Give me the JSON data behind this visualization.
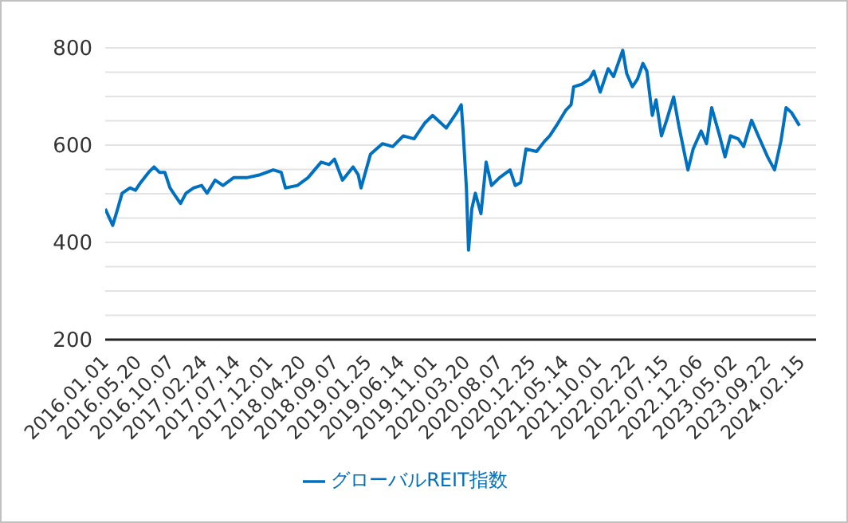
{
  "chart_data": {
    "type": "line",
    "x": [
      "2016-01-01",
      "2016-01-16",
      "2016-02-02",
      "2016-02-20",
      "2016-03-13",
      "2016-04-16",
      "2016-05-09",
      "2016-05-31",
      "2016-07-04",
      "2016-07-27",
      "2016-08-19",
      "2016-09-11",
      "2016-10-03",
      "2016-10-25",
      "2016-11-17",
      "2016-12-10",
      "2017-01-12",
      "2017-02-15",
      "2017-03-10",
      "2017-04-13",
      "2017-05-17",
      "2017-07-01",
      "2017-08-26",
      "2017-10-22",
      "2017-12-17",
      "2018-01-20",
      "2018-02-07",
      "2018-03-30",
      "2018-05-14",
      "2018-07-09",
      "2018-08-12",
      "2018-09-04",
      "2018-10-08",
      "2018-11-22",
      "2018-12-14",
      "2018-12-26",
      "2019-02-04",
      "2019-03-27",
      "2019-05-10",
      "2019-06-24",
      "2019-08-09",
      "2019-09-23",
      "2019-10-27",
      "2019-12-02",
      "2019-12-24",
      "2020-02-07",
      "2020-02-26",
      "2020-03-05",
      "2020-03-19",
      "2020-03-28",
      "2020-04-11",
      "2020-04-26",
      "2020-05-20",
      "2020-06-11",
      "2020-07-04",
      "2020-08-07",
      "2020-09-21",
      "2020-10-13",
      "2020-11-05",
      "2020-11-28",
      "2021-01-12",
      "2021-02-15",
      "2021-03-09",
      "2021-04-13",
      "2021-05-17",
      "2021-06-08",
      "2021-06-19",
      "2021-07-23",
      "2021-08-26",
      "2021-09-13",
      "2021-10-10",
      "2021-11-13",
      "2021-12-06",
      "2022-01-14",
      "2022-01-31",
      "2022-02-24",
      "2022-03-18",
      "2022-04-10",
      "2022-04-27",
      "2022-05-20",
      "2022-06-05",
      "2022-06-28",
      "2022-07-20",
      "2022-08-19",
      "2022-09-10",
      "2022-10-07",
      "2022-10-19",
      "2022-11-10",
      "2022-12-14",
      "2023-01-06",
      "2023-01-28",
      "2023-03-03",
      "2023-03-26",
      "2023-04-18",
      "2023-05-21",
      "2023-06-13",
      "2023-07-17",
      "2023-08-20",
      "2023-09-23",
      "2023-10-23",
      "2023-11-19",
      "2023-12-11",
      "2024-01-03",
      "2024-02-06"
    ],
    "series": [
      {
        "name": "グローバルREIT指数",
        "color": "#0070c0",
        "values": [
          469,
          453,
          435,
          464,
          501,
          512,
          507,
          523,
          544,
          555,
          544,
          544,
          512,
          496,
          480,
          501,
          512,
          517,
          501,
          528,
          517,
          533,
          533,
          539,
          549,
          544,
          512,
          517,
          533,
          565,
          560,
          571,
          528,
          555,
          539,
          512,
          581,
          603,
          597,
          619,
          613,
          645,
          661,
          645,
          635,
          667,
          683,
          629,
          512,
          384,
          469,
          501,
          459,
          565,
          517,
          533,
          549,
          517,
          523,
          592,
          587,
          608,
          619,
          645,
          672,
          683,
          720,
          725,
          736,
          752,
          709,
          757,
          741,
          795,
          747,
          720,
          736,
          768,
          752,
          661,
          693,
          619,
          651,
          699,
          640,
          576,
          549,
          592,
          629,
          603,
          677,
          619,
          576,
          619,
          613,
          597,
          651,
          613,
          576,
          549,
          608,
          677,
          667,
          640
        ]
      }
    ],
    "xlim": [
      "2016-01-01",
      "2024-04-17"
    ],
    "xticks": [
      {
        "value": "2016-01-01",
        "label": "2016.01.01"
      },
      {
        "value": "2016-05-20",
        "label": "2016.05.20"
      },
      {
        "value": "2016-10-07",
        "label": "2016.10.07"
      },
      {
        "value": "2017-02-24",
        "label": "2017.02.24"
      },
      {
        "value": "2017-07-14",
        "label": "2017.07.14"
      },
      {
        "value": "2017-12-01",
        "label": "2017.12.01"
      },
      {
        "value": "2018-04-20",
        "label": "2018.04.20"
      },
      {
        "value": "2018-09-07",
        "label": "2018.09.07"
      },
      {
        "value": "2019-01-25",
        "label": "2019.01.25"
      },
      {
        "value": "2019-06-14",
        "label": "2019.06.14"
      },
      {
        "value": "2019-11-01",
        "label": "2019.11.01"
      },
      {
        "value": "2020-03-20",
        "label": "2020.03.20"
      },
      {
        "value": "2020-08-07",
        "label": "2020.08.07"
      },
      {
        "value": "2020-12-25",
        "label": "2020.12.25"
      },
      {
        "value": "2021-05-14",
        "label": "2021.05.14"
      },
      {
        "value": "2021-10-01",
        "label": "2021.10.01"
      },
      {
        "value": "2022-02-22",
        "label": "2022.02.22"
      },
      {
        "value": "2022-07-15",
        "label": "2022.07.15"
      },
      {
        "value": "2022-12-06",
        "label": "2022.12.06"
      },
      {
        "value": "2023-05-02",
        "label": "2023.05.02"
      },
      {
        "value": "2023-09-22",
        "label": "2023.09.22"
      },
      {
        "value": "2024-02-15",
        "label": "2024.02.15"
      }
    ],
    "ylim": [
      200,
      800
    ],
    "yticks": [
      200,
      {
        "value": 250,
        "label": null
      },
      {
        "value": 300,
        "label": null
      },
      {
        "value": 350,
        "label": null
      },
      400,
      {
        "value": 450,
        "label": null
      },
      {
        "value": 500,
        "label": null
      },
      {
        "value": 550,
        "label": null
      },
      600,
      {
        "value": 650,
        "label": null
      },
      {
        "value": 700,
        "label": null
      },
      {
        "value": 750,
        "label": null
      },
      800
    ],
    "grid": "y",
    "legend": "bottom",
    "marker": "none",
    "line_style": "solid"
  }
}
